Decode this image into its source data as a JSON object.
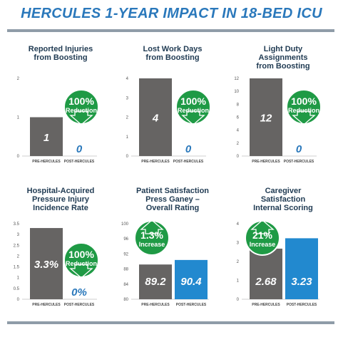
{
  "title": "HERCULES 1-YEAR IMPACT IN 18-BED ICU",
  "colors": {
    "pre": "#666463",
    "post": "#2289cf",
    "accent": "#2a78bb",
    "badge": "#1f9a45",
    "rule": "#8f9ca8"
  },
  "chart_data": [
    {
      "type": "bar",
      "title": "Reported Injuries\nfrom Boosting",
      "categories": [
        "PRE-HERCULES",
        "POST-HERCULES"
      ],
      "values": [
        1,
        0
      ],
      "value_labels": [
        "1",
        "0"
      ],
      "ylim": [
        0,
        2
      ],
      "yticks": [
        "0",
        "1",
        "2"
      ],
      "badge": {
        "big": "100%",
        "small": "Reduction",
        "arrow": "down"
      }
    },
    {
      "type": "bar",
      "title": "Lost Work Days\nfrom Boosting",
      "categories": [
        "PRE-HERCULES",
        "POST-HERCULES"
      ],
      "values": [
        4,
        0
      ],
      "value_labels": [
        "4",
        "0"
      ],
      "ylim": [
        0,
        4
      ],
      "yticks": [
        "0",
        "1",
        "2",
        "3",
        "4"
      ],
      "badge": {
        "big": "100%",
        "small": "Reduction",
        "arrow": "down"
      }
    },
    {
      "type": "bar",
      "title": "Light Duty\nAssignments\nfrom Boosting",
      "categories": [
        "PRE-HERCULES",
        "POST-HERCULES"
      ],
      "values": [
        12,
        0
      ],
      "value_labels": [
        "12",
        "0"
      ],
      "ylim": [
        0,
        12
      ],
      "yticks": [
        "0",
        "2",
        "4",
        "6",
        "8",
        "10",
        "12"
      ],
      "badge": {
        "big": "100%",
        "small": "Reduction",
        "arrow": "down"
      }
    },
    {
      "type": "bar",
      "title": "Hospital-Acquired\nPressure Injury\nIncidence Rate",
      "categories": [
        "PRE-HERCULES",
        "POST-HERCULES"
      ],
      "values": [
        3.3,
        0
      ],
      "value_labels": [
        "3.3%",
        "0%"
      ],
      "ylim": [
        0,
        3.5
      ],
      "yticks": [
        "0",
        "0.5",
        "1",
        "1.5",
        "2",
        "2.5",
        "3",
        "3.5"
      ],
      "badge": {
        "big": "100%",
        "small": "Reduction",
        "arrow": "down"
      }
    },
    {
      "type": "bar",
      "title": "Patient Satisfaction\nPress Ganey –\nOverall Rating",
      "categories": [
        "PRE-HERCULES",
        "POST-HERCULES"
      ],
      "values": [
        89.2,
        90.4
      ],
      "value_labels": [
        "89.2",
        "90.4"
      ],
      "ylim": [
        80,
        100
      ],
      "yticks": [
        "80",
        "84",
        "88",
        "92",
        "96",
        "100"
      ],
      "badge": {
        "big": "1.3%",
        "small": "Increase",
        "arrow": "up"
      }
    },
    {
      "type": "bar",
      "title": "Caregiver\nSatisfaction\nInternal Scoring",
      "categories": [
        "PRE-HERCULES",
        "POST-HERCULES"
      ],
      "values": [
        2.68,
        3.23
      ],
      "value_labels": [
        "2.68",
        "3.23"
      ],
      "ylim": [
        0,
        4
      ],
      "yticks": [
        "0",
        "1",
        "2",
        "3",
        "4"
      ],
      "badge": {
        "big": "21%",
        "small": "Increase",
        "arrow": "up"
      }
    }
  ]
}
